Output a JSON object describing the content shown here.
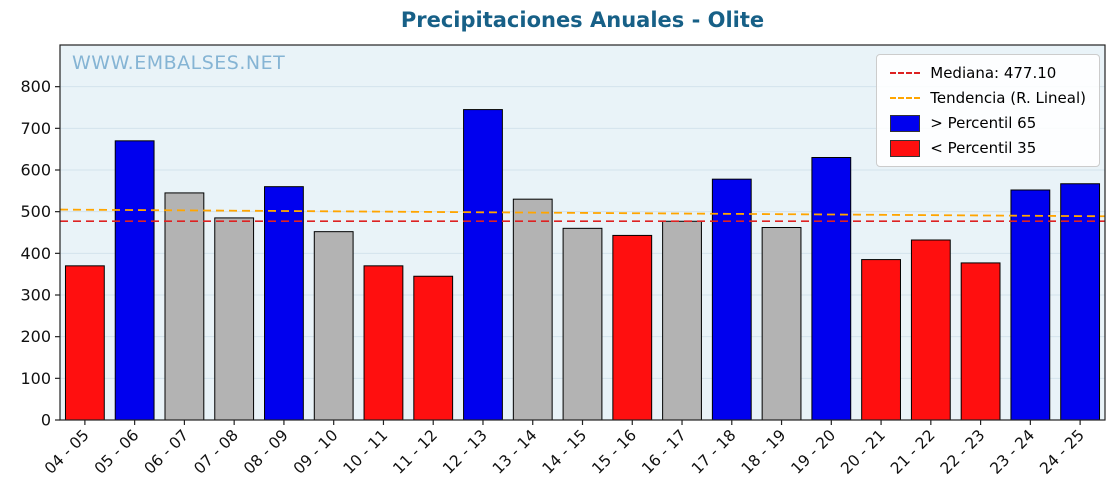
{
  "chart_data": {
    "type": "bar",
    "title": "Precipitaciones Anuales - Olite",
    "watermark": "WWW.EMBALSES.NET",
    "categories": [
      "04 - 05",
      "05 - 06",
      "06 - 07",
      "07 - 08",
      "08 - 09",
      "09 - 10",
      "10 - 11",
      "11 - 12",
      "12 - 13",
      "13 - 14",
      "14 - 15",
      "15 - 16",
      "16 - 17",
      "17 - 18",
      "18 - 19",
      "19 - 20",
      "20 - 21",
      "21 - 22",
      "22 - 23",
      "23 - 24",
      "24 - 25"
    ],
    "values": [
      370,
      670,
      545,
      485,
      560,
      452,
      370,
      345,
      745,
      530,
      460,
      443,
      477,
      578,
      462,
      630,
      385,
      432,
      377,
      552,
      567
    ],
    "bar_classes": [
      "low",
      "high",
      "mid",
      "mid",
      "high",
      "mid",
      "low",
      "low",
      "high",
      "mid",
      "mid",
      "low",
      "mid",
      "high",
      "mid",
      "high",
      "low",
      "low",
      "low",
      "high",
      "high"
    ],
    "class_colors": {
      "high": "#0000ee",
      "mid": "#b3b3b3",
      "low": "#ff0f0f"
    },
    "median": 477.1,
    "median_color": "#dd2222",
    "trend": {
      "start": 505,
      "end": 489,
      "color": "#ffa500"
    },
    "ylim": [
      0,
      900
    ],
    "yticks": [
      0,
      100,
      200,
      300,
      400,
      500,
      600,
      700,
      800
    ],
    "xlabel": "",
    "ylabel": "",
    "grid": true,
    "legend_position": "top-right",
    "legend": [
      {
        "label": "Mediana: 477.10",
        "kind": "dashed-line",
        "color": "#dd2222"
      },
      {
        "label": "Tendencia (R. Lineal)",
        "kind": "dashed-line",
        "color": "#ffa500"
      },
      {
        "label": "> Percentil 65",
        "kind": "patch",
        "color": "#0000ee"
      },
      {
        "label": "< Percentil 35",
        "kind": "patch",
        "color": "#ff0f0f"
      }
    ],
    "colors": {
      "title": "#176087",
      "watermark": "#85b4d4",
      "plot_bg": "#e9f3f8",
      "grid": "#d3e3ec",
      "axis": "#222222",
      "tick_text": "#111111"
    }
  }
}
